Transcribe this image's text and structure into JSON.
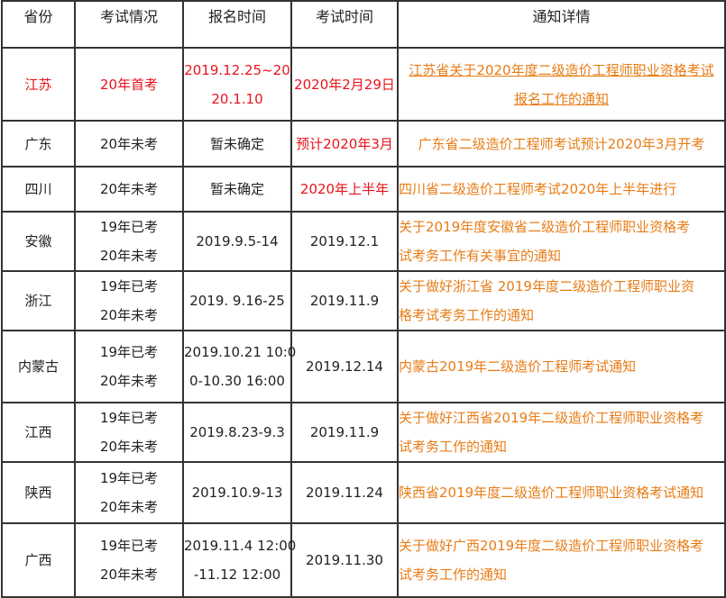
{
  "colors": {
    "red": "#e8141c",
    "link": "#e87c16",
    "text": "#222222",
    "border": "#333333"
  },
  "table": {
    "headers": [
      "省份",
      "考试情况",
      "报名时间",
      "考试时间",
      "通知详情"
    ],
    "rows": [
      {
        "province": "江苏",
        "status": [
          "20年首考"
        ],
        "registration": [
          "2019.12.25~20",
          "20.1.10"
        ],
        "exam": [
          "2020年2月29日"
        ],
        "notice": [
          "江苏省关于2020年度二级造价工程师职业资格考试",
          "报名工作的通知"
        ],
        "highlight": true,
        "notice_underlined": true,
        "notice_centered": true
      },
      {
        "province": "广东",
        "status": [
          "20年未考"
        ],
        "registration": [
          "暂未确定"
        ],
        "exam": [
          "预计2020年3月"
        ],
        "notice": [
          "广东省二级造价工程师考试预计2020年3月开考"
        ],
        "exam_red": true,
        "notice_centered": true
      },
      {
        "province": "四川",
        "status": [
          "20年未考"
        ],
        "registration": [
          "暂未确定"
        ],
        "exam": [
          "2020年上半年"
        ],
        "notice": [
          "四川省二级造价工程师考试2020年上半年进行"
        ],
        "exam_red": true
      },
      {
        "province": "安徽",
        "status": [
          "19年已考",
          "20年未考"
        ],
        "registration": [
          "2019.9.5-14"
        ],
        "exam": [
          "2019.12.1"
        ],
        "notice": [
          " 关于2019年度安徽省二级造价工程师职业资格考",
          "试考务工作有关事宜的通知"
        ]
      },
      {
        "province": "浙江",
        "status": [
          "19年已考",
          "20年未考"
        ],
        "registration": [
          "2019. 9.16-25"
        ],
        "exam": [
          "2019.11.9"
        ],
        "notice": [
          " 关于做好浙江省 2019年度二级造价工程师职业资",
          "格考试考务工作的通知"
        ]
      },
      {
        "province": "内蒙古",
        "status": [
          "19年已考",
          "20年未考"
        ],
        "registration": [
          "2019.10.21 10:0",
          "0-10.30 16:00"
        ],
        "exam": [
          "2019.12.14"
        ],
        "notice": [
          "内蒙古2019年二级造价工程师考试通知"
        ]
      },
      {
        "province": "江西",
        "status": [
          "19年已考",
          "20年未考"
        ],
        "registration": [
          "2019.8.23-9.3"
        ],
        "exam": [
          "2019.11.9"
        ],
        "notice": [
          "关于做好江西省2019年二级造价工程师职业资格考",
          "试考务工作的通知"
        ]
      },
      {
        "province": "陕西",
        "status": [
          "19年已考",
          "20年未考"
        ],
        "registration": [
          "2019.10.9-13"
        ],
        "exam": [
          "2019.11.24"
        ],
        "notice": [
          "陕西省2019年度二级造价工程师职业资格考试通知"
        ]
      },
      {
        "province": "广西",
        "status": [
          "19年已考",
          "20年未考"
        ],
        "registration": [
          "2019.11.4 12:00",
          "-11.12 12:00"
        ],
        "exam": [
          "2019.11.30"
        ],
        "notice": [
          "关于做好广西2019年度二级造价工程师职业资格考",
          "试考务工作的通知"
        ]
      }
    ]
  }
}
